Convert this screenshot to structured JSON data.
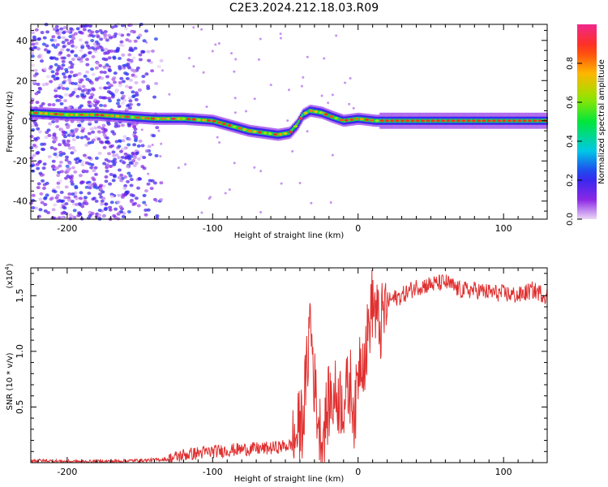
{
  "title": "C2E3.2024.212.18.03.R09",
  "chart_data": [
    {
      "type": "heatmap",
      "xlabel": "Height of straight line (km)",
      "ylabel": "Frequency (Hz)",
      "xlim": [
        -225,
        130
      ],
      "ylim": [
        -49,
        48
      ],
      "xticks": [
        -200,
        -100,
        0,
        100
      ],
      "yticks": [
        -40,
        -20,
        0,
        20,
        40
      ],
      "ridge": [
        {
          "x": -225,
          "y": 4
        },
        {
          "x": -200,
          "y": 3
        },
        {
          "x": -180,
          "y": 3
        },
        {
          "x": -160,
          "y": 2
        },
        {
          "x": -140,
          "y": 1
        },
        {
          "x": -120,
          "y": 1
        },
        {
          "x": -100,
          "y": 0
        },
        {
          "x": -85,
          "y": -3
        },
        {
          "x": -75,
          "y": -5
        },
        {
          "x": -65,
          "y": -6
        },
        {
          "x": -55,
          "y": -7
        },
        {
          "x": -47,
          "y": -6
        },
        {
          "x": -42,
          "y": -2
        },
        {
          "x": -38,
          "y": 3
        },
        {
          "x": -33,
          "y": 5
        },
        {
          "x": -25,
          "y": 4
        },
        {
          "x": -18,
          "y": 2
        },
        {
          "x": -10,
          "y": 0
        },
        {
          "x": 0,
          "y": 1
        },
        {
          "x": 12,
          "y": 0
        },
        {
          "x": 130,
          "y": 0
        }
      ],
      "colorbar": {
        "label": "Normalized spectral amplitude",
        "range": [
          0,
          1
        ],
        "ticks": [
          "0.0",
          "0.2",
          "0.4",
          "0.6",
          "0.8"
        ]
      }
    },
    {
      "type": "line",
      "xlabel": "Height of straight line (km)",
      "ylabel": "SNR (10 * v/v)",
      "scale_label": "(x10",
      "scale_exp": "4",
      "xlim": [
        -225,
        130
      ],
      "ylim": [
        0,
        1.75
      ],
      "xticks": [
        -200,
        -100,
        0,
        100
      ],
      "yticks": [
        0.5,
        1.0,
        1.5
      ],
      "ytick_labels": [
        "0.5",
        "1.0",
        "1.5"
      ],
      "color": "#e03030",
      "series": [
        {
          "x": [
            -225,
            -200,
            -175,
            -150,
            -130,
            -120,
            -100,
            -80,
            -60,
            -45,
            -38,
            -35,
            -33,
            -30,
            -27,
            -25,
            -22,
            -20,
            -15,
            -10,
            -5,
            -2,
            0,
            2,
            5,
            8,
            10,
            15,
            20,
            30,
            40,
            50,
            60,
            70,
            80,
            90,
            100,
            110,
            120,
            130
          ],
          "values": [
            0.02,
            0.01,
            0.01,
            0.02,
            0.03,
            0.07,
            0.1,
            0.12,
            0.13,
            0.16,
            0.4,
            0.85,
            1.35,
            0.7,
            0.35,
            0.2,
            0.4,
            0.55,
            0.6,
            0.55,
            0.7,
            0.4,
            0.85,
            1.0,
            0.95,
            1.3,
            1.45,
            1.2,
            1.45,
            1.5,
            1.58,
            1.6,
            1.62,
            1.55,
            1.55,
            1.53,
            1.52,
            1.5,
            1.55,
            1.5
          ]
        }
      ]
    }
  ]
}
